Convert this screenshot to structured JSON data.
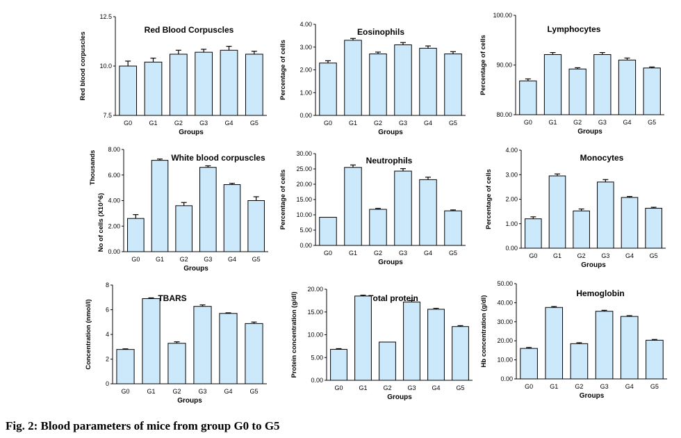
{
  "caption": "Fig. 2: Blood parameters of mice from group G0 to G5",
  "colors": {
    "bar_fill": "#cce8fb",
    "bar_stroke": "#000000"
  },
  "chart_data": [
    {
      "type": "bar",
      "title": "Red Blood Corpuscles",
      "xlabel": "Groups",
      "ylabel": "Red blood corpuscles",
      "categories": [
        "G0",
        "G1",
        "G2",
        "G3",
        "G4",
        "G5"
      ],
      "values": [
        10.0,
        10.2,
        10.6,
        10.7,
        10.8,
        10.6
      ],
      "errors": [
        0.25,
        0.2,
        0.2,
        0.15,
        0.2,
        0.15
      ],
      "ylim": [
        7.5,
        12.5
      ],
      "yticks": [
        "7.5",
        "10.0",
        "12.5"
      ]
    },
    {
      "type": "bar",
      "title": "Eosinophils",
      "xlabel": "Groups",
      "ylabel": "Percentage of cells",
      "categories": [
        "G0",
        "G1",
        "G2",
        "G3",
        "G4",
        "G5"
      ],
      "values": [
        2.3,
        3.3,
        2.7,
        3.1,
        2.95,
        2.7
      ],
      "errors": [
        0.1,
        0.08,
        0.08,
        0.1,
        0.1,
        0.1
      ],
      "ylim": [
        0,
        4
      ],
      "yticks": [
        "0.00",
        "1.00",
        "2.00",
        "3.00",
        "4.00"
      ]
    },
    {
      "type": "bar",
      "title": "Lymphocytes",
      "xlabel": "Groups",
      "ylabel": "Percentage of cells",
      "categories": [
        "G0",
        "G1",
        "G2",
        "G3",
        "G4",
        "G5"
      ],
      "values": [
        86.8,
        92.1,
        89.2,
        92.1,
        91.0,
        89.4
      ],
      "errors": [
        0.4,
        0.4,
        0.25,
        0.4,
        0.4,
        0.2
      ],
      "ylim": [
        80,
        100
      ],
      "yticks": [
        "80.00",
        "90.00",
        "100.00"
      ]
    },
    {
      "type": "bar",
      "title": "White blood corpuscles",
      "xlabel": "Groups",
      "ylabel": "No of cells (X10^6)",
      "ylabel2": "Thousands",
      "categories": [
        "G0",
        "G1",
        "G2",
        "G3",
        "G4",
        "G5"
      ],
      "values": [
        2.6,
        7.15,
        3.6,
        6.6,
        5.25,
        4.0
      ],
      "errors": [
        0.3,
        0.1,
        0.25,
        0.12,
        0.1,
        0.3
      ],
      "ylim": [
        0,
        8
      ],
      "yticks": [
        "0.00",
        "2.00",
        "4.00",
        "6.00",
        "8.00"
      ]
    },
    {
      "type": "bar",
      "title": "Neutrophils",
      "xlabel": "Groups",
      "ylabel": "Percentage of cells",
      "categories": [
        "G0",
        "G1",
        "G2",
        "G3",
        "G4",
        "G5"
      ],
      "values": [
        9.2,
        25.5,
        11.8,
        24.3,
        21.5,
        11.3
      ],
      "errors": [
        0,
        0.8,
        0.3,
        0.8,
        0.8,
        0.3
      ],
      "ylim": [
        0,
        30
      ],
      "yticks": [
        "0.00",
        "5.00",
        "10.00",
        "15.00",
        "20.00",
        "25.00",
        "30.00"
      ]
    },
    {
      "type": "bar",
      "title": "Monocytes",
      "xlabel": "Groups",
      "ylabel": "Percentage of cells",
      "categories": [
        "G0",
        "G1",
        "G2",
        "G3",
        "G4",
        "G5"
      ],
      "values": [
        1.2,
        2.95,
        1.52,
        2.7,
        2.07,
        1.63
      ],
      "errors": [
        0.08,
        0.08,
        0.08,
        0.1,
        0.04,
        0.04
      ],
      "ylim": [
        0,
        4
      ],
      "yticks": [
        "0.00",
        "1.00",
        "2.00",
        "3.00",
        "4.00"
      ]
    },
    {
      "type": "bar",
      "title": "TBARS",
      "xlabel": "Groups",
      "ylabel": "Concentration (nmol/l)",
      "categories": [
        "G0",
        "G1",
        "G2",
        "G3",
        "G4",
        "G5"
      ],
      "values": [
        2.78,
        6.9,
        3.28,
        6.27,
        5.7,
        4.88
      ],
      "errors": [
        0.05,
        0.06,
        0.12,
        0.12,
        0.05,
        0.12
      ],
      "ylim": [
        0,
        8
      ],
      "yticks": [
        "0",
        "2",
        "4",
        "6",
        "8"
      ]
    },
    {
      "type": "bar",
      "title": "Total protein",
      "xlabel": "Groups",
      "ylabel": "Protein concentration (g/dl)",
      "categories": [
        "G0",
        "G1",
        "G2",
        "G3",
        "G4",
        "G5"
      ],
      "values": [
        6.8,
        18.5,
        8.4,
        17.2,
        15.6,
        11.8
      ],
      "errors": [
        0.15,
        0.2,
        0,
        0.3,
        0.2,
        0.2
      ],
      "ylim": [
        0,
        20
      ],
      "yticks": [
        "0.00",
        "5.00",
        "10.00",
        "15.00",
        "20.00"
      ]
    },
    {
      "type": "bar",
      "title": "Hemoglobin",
      "xlabel": "Groups",
      "ylabel": "Hb concentration (g/dl)",
      "categories": [
        "G0",
        "G1",
        "G2",
        "G3",
        "G4",
        "G5"
      ],
      "values": [
        16.0,
        37.5,
        18.5,
        35.5,
        32.8,
        20.3
      ],
      "errors": [
        0.5,
        0.5,
        0.5,
        0.5,
        0.4,
        0.4
      ],
      "ylim": [
        0,
        50
      ],
      "yticks": [
        "0.00",
        "10.00",
        "20.00",
        "30.00",
        "40.00",
        "50.00"
      ]
    }
  ]
}
